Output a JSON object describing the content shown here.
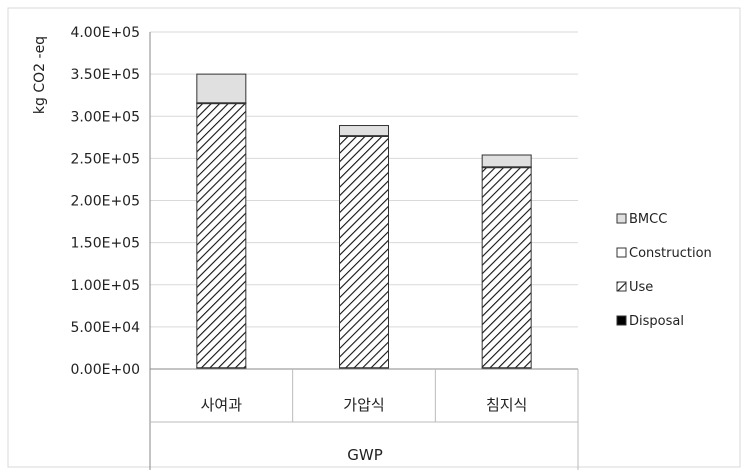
{
  "chart_data": {
    "type": "bar",
    "stacked": true,
    "ylabel": "kg CO2 -eq",
    "group_label": "GWP",
    "ylim": [
      0,
      400000
    ],
    "y_ticks": [
      "0.00E+00",
      "5.00E+04",
      "1.00E+05",
      "1.50E+05",
      "2.00E+05",
      "2.50E+05",
      "3.00E+05",
      "3.50E+05",
      "4.00E+05"
    ],
    "y_tick_values": [
      0,
      50000,
      100000,
      150000,
      200000,
      250000,
      300000,
      350000,
      400000
    ],
    "grid": true,
    "legend_position": "right",
    "categories": [
      "사여과",
      "가압식",
      "침지식"
    ],
    "series": [
      {
        "name": "Disposal",
        "values": [
          1500,
          1500,
          1500
        ],
        "color": "#000000",
        "pattern": "solid"
      },
      {
        "name": "Use",
        "values": [
          313500,
          274500,
          237500
        ],
        "color": "#ffffff",
        "pattern": "hatch"
      },
      {
        "name": "Construction",
        "values": [
          1000,
          1000,
          1000
        ],
        "color": "#ffffff",
        "pattern": "none"
      },
      {
        "name": "BMCC",
        "values": [
          34000,
          12000,
          14000
        ],
        "color": "#e0e0e0",
        "pattern": "solid"
      }
    ],
    "legend_order": [
      "BMCC",
      "Construction",
      "Use",
      "Disposal"
    ]
  }
}
